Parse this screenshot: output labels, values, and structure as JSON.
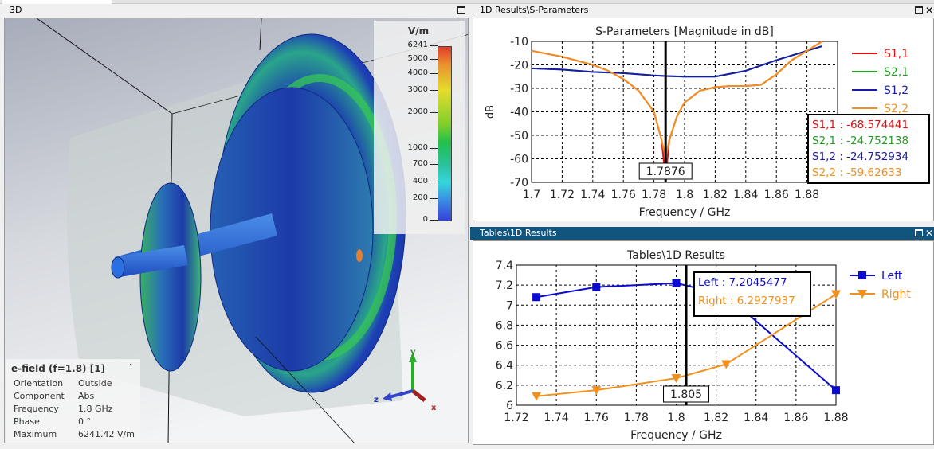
{
  "panels": {
    "view3d": {
      "title": "3D"
    },
    "sparams": {
      "title": "1D Results\\S-Parameters"
    },
    "tables": {
      "title": "Tables\\1D Results"
    }
  },
  "colorbar": {
    "unit": "V/m",
    "ticks": [
      "6241",
      "5000",
      "4000",
      "3000",
      "2000",
      "1000",
      "700",
      "400",
      "200",
      "0"
    ],
    "colors": [
      "#e33b2c",
      "#e5dc2d",
      "#22c04a",
      "#35d6dc",
      "#3440d8"
    ]
  },
  "info": {
    "title": "e-field (f=1.8) [1]",
    "rows": [
      {
        "key": "Orientation",
        "value": "Outside"
      },
      {
        "key": "Component",
        "value": "Abs"
      },
      {
        "key": "Frequency",
        "value": "1.8 GHz"
      },
      {
        "key": "Phase",
        "value": "0 °"
      },
      {
        "key": "Maximum",
        "value": "6241.42 V/m"
      }
    ]
  },
  "axes": {
    "x": "x",
    "y": "y",
    "z": "z"
  },
  "chart_data": [
    {
      "type": "line",
      "title": "S-Parameters [Magnitude in dB]",
      "xlabel": "Frequency / GHz",
      "ylabel": "dB",
      "xlim": [
        1.7,
        1.9
      ],
      "ylim": [
        -70,
        -10
      ],
      "xticks": [
        "1.7",
        "1.72",
        "1.74",
        "1.76",
        "1.78",
        "1.8",
        "1.82",
        "1.84",
        "1.86",
        "1.88"
      ],
      "yticks": [
        "-10",
        "-20",
        "-30",
        "-40",
        "-50",
        "-60",
        "-70"
      ],
      "grid": true,
      "legend": "right",
      "cursor": {
        "x": 1.7876,
        "label": "1.7876"
      },
      "readout": [
        "S1,1 : -68.574441",
        "S2,1 : -24.752138",
        "S1,2 : -24.752934",
        "S2,2 : -59.62633"
      ],
      "series": [
        {
          "name": "S1,1",
          "color": "#e01010",
          "x": [
            1.7,
            1.72,
            1.74,
            1.75,
            1.76,
            1.77,
            1.78,
            1.785,
            1.7876,
            1.79,
            1.795,
            1.8,
            1.81,
            1.82,
            1.83,
            1.84,
            1.85,
            1.86,
            1.87,
            1.88,
            1.89
          ],
          "y": [
            -14,
            -16.5,
            -20,
            -22.5,
            -26,
            -31,
            -40,
            -52,
            -68.6,
            -52,
            -42,
            -36,
            -31,
            -29.5,
            -29,
            -29,
            -28.5,
            -24,
            -18,
            -14,
            -10
          ]
        },
        {
          "name": "S2,1",
          "color": "#1fa01f",
          "x": [
            1.7,
            1.72,
            1.74,
            1.76,
            1.78,
            1.7876,
            1.8,
            1.82,
            1.84,
            1.86,
            1.88,
            1.89
          ],
          "y": [
            -21.5,
            -22,
            -23,
            -23.5,
            -24.5,
            -24.75,
            -25,
            -25,
            -22.5,
            -18,
            -14,
            -12
          ]
        },
        {
          "name": "S1,2",
          "color": "#1a1aa8",
          "x": [
            1.7,
            1.72,
            1.74,
            1.76,
            1.78,
            1.7876,
            1.8,
            1.82,
            1.84,
            1.86,
            1.88,
            1.89
          ],
          "y": [
            -21.5,
            -22,
            -23,
            -23.5,
            -24.5,
            -24.75,
            -25,
            -25,
            -22.5,
            -18,
            -14,
            -12
          ]
        },
        {
          "name": "S2,2",
          "color": "#f0901e",
          "x": [
            1.7,
            1.72,
            1.74,
            1.75,
            1.76,
            1.77,
            1.78,
            1.785,
            1.7876,
            1.79,
            1.795,
            1.8,
            1.81,
            1.82,
            1.83,
            1.84,
            1.85,
            1.86,
            1.87,
            1.88,
            1.89
          ],
          "y": [
            -14,
            -16.5,
            -20,
            -22.5,
            -26,
            -31,
            -40,
            -52,
            -59.6,
            -52,
            -42,
            -36,
            -31,
            -29.5,
            -29,
            -29,
            -28.5,
            -24,
            -18,
            -14,
            -10
          ]
        }
      ]
    },
    {
      "type": "line",
      "title": "Tables\\1D Results",
      "xlabel": "Frequency / GHz",
      "ylabel": "",
      "xlim": [
        1.72,
        1.88
      ],
      "ylim": [
        6,
        7.4
      ],
      "xticks": [
        "1.72",
        "1.74",
        "1.76",
        "1.78",
        "1.8",
        "1.82",
        "1.84",
        "1.86",
        "1.88"
      ],
      "yticks": [
        "7.4",
        "7.2",
        "7",
        "6.8",
        "6.6",
        "6.4",
        "6.2",
        "6"
      ],
      "grid": true,
      "legend": "right",
      "cursor": {
        "x": 1.805,
        "label": "1.805"
      },
      "readout": [
        "Left : 7.2045477",
        "Right : 6.2927937"
      ],
      "series": [
        {
          "name": "Left",
          "color": "#0a0ad0",
          "marker": "square",
          "x": [
            1.73,
            1.76,
            1.8,
            1.825,
            1.88
          ],
          "y": [
            7.08,
            7.18,
            7.22,
            7.1,
            6.15
          ]
        },
        {
          "name": "Right",
          "color": "#f0901e",
          "marker": "triangle-down",
          "x": [
            1.73,
            1.76,
            1.8,
            1.825,
            1.88
          ],
          "y": [
            6.09,
            6.15,
            6.27,
            6.41,
            7.11
          ]
        }
      ]
    }
  ]
}
